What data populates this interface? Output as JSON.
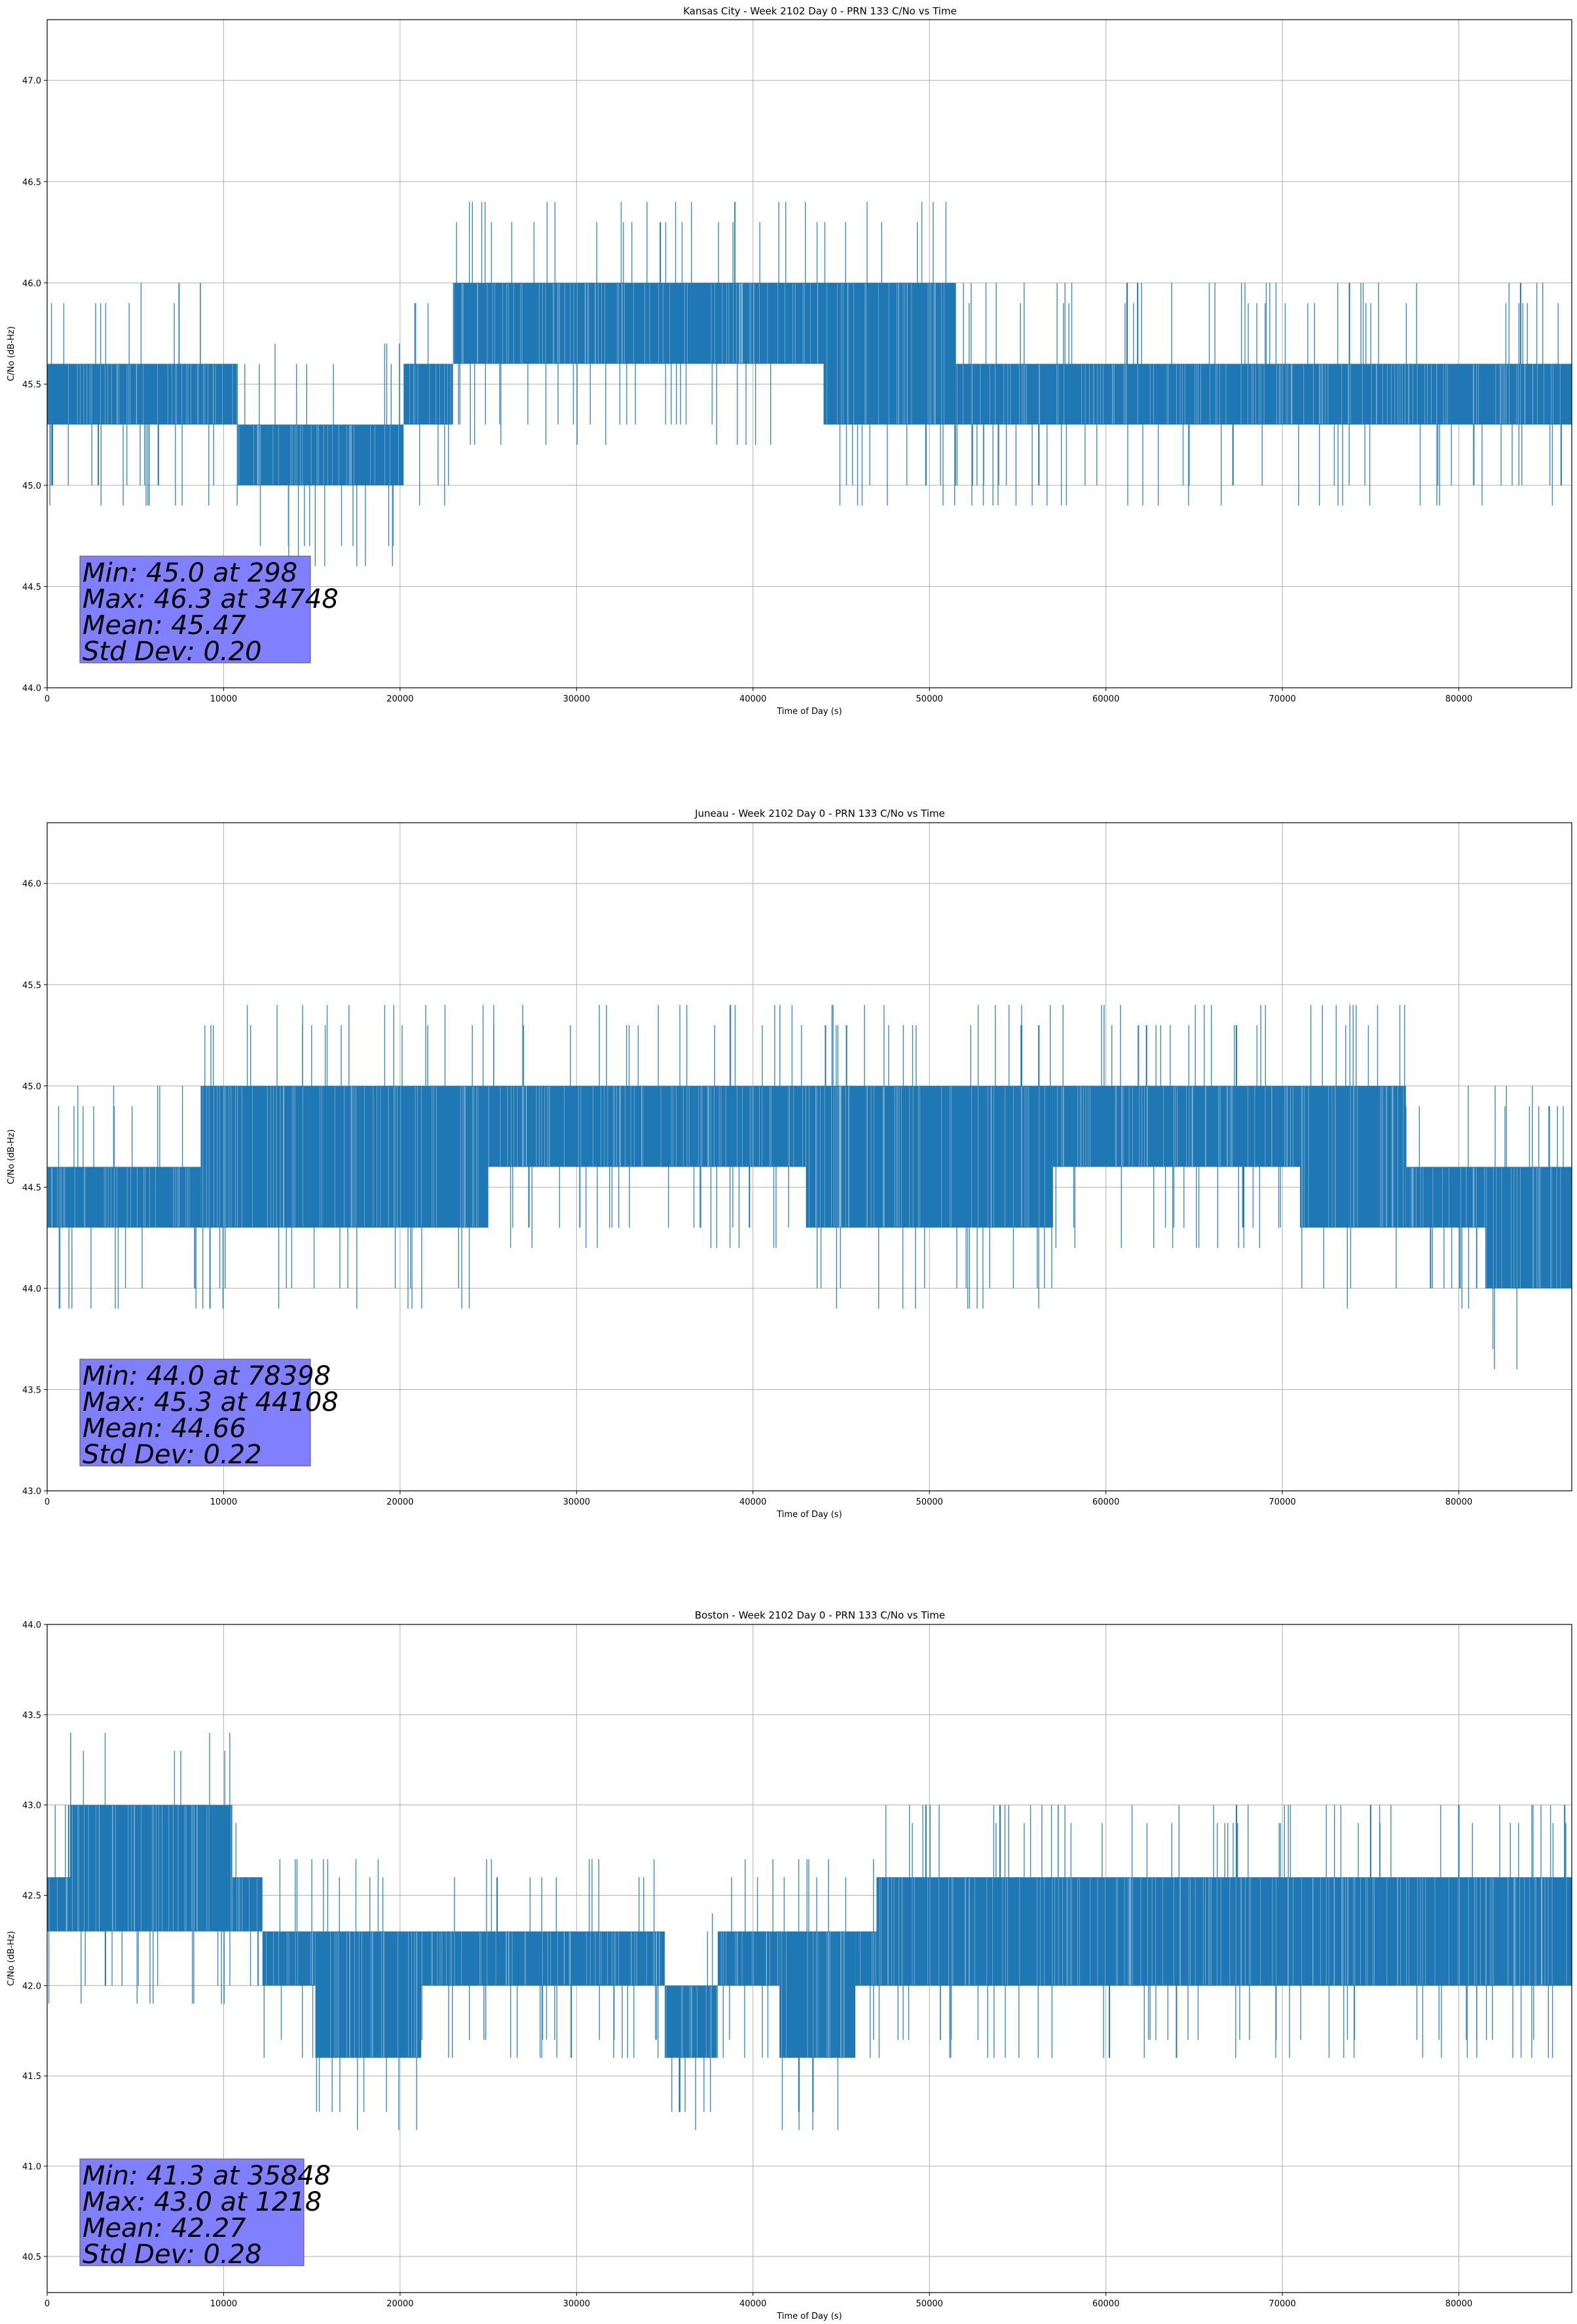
{
  "chart_data": [
    {
      "type": "line",
      "title": "Kansas City - Week 2102 Day 0 - PRN 133 C/No vs Time",
      "xlabel": "Time of Day (s)",
      "ylabel": "C/No (dB-Hz)",
      "xlim": [
        0,
        86400
      ],
      "ylim": [
        44.0,
        47.3
      ],
      "xticks": [
        0,
        10000,
        20000,
        30000,
        40000,
        50000,
        60000,
        70000,
        80000
      ],
      "yticks": [
        "44.0",
        "44.5",
        "45.0",
        "45.5",
        "46.0",
        "46.5",
        "47.0"
      ],
      "grid": true,
      "color": "#1f77b4",
      "segments": [
        {
          "from": 0,
          "to": 10800,
          "lo": 45.3,
          "hi": 45.6
        },
        {
          "from": 10800,
          "to": 20200,
          "lo": 45.0,
          "hi": 45.3
        },
        {
          "from": 20200,
          "to": 23000,
          "lo": 45.3,
          "hi": 45.6
        },
        {
          "from": 23000,
          "to": 35000,
          "lo": 45.6,
          "hi": 46.0
        },
        {
          "from": 35000,
          "to": 44000,
          "lo": 45.6,
          "hi": 46.0
        },
        {
          "from": 44000,
          "to": 51500,
          "lo": 45.3,
          "hi": 46.0
        },
        {
          "from": 51500,
          "to": 86400,
          "lo": 45.3,
          "hi": 45.6
        }
      ],
      "spikes": [
        {
          "x": 298,
          "y": 45.0
        },
        {
          "x": 2900,
          "y": 45.0
        },
        {
          "x": 6300,
          "y": 45.0
        },
        {
          "x": 34748,
          "y": 46.3
        },
        {
          "x": 61200,
          "y": 46.0
        },
        {
          "x": 61800,
          "y": 46.0
        },
        {
          "x": 73800,
          "y": 46.0
        },
        {
          "x": 83500,
          "y": 46.0
        },
        {
          "x": 49800,
          "y": 45.0
        },
        {
          "x": 56200,
          "y": 45.0
        },
        {
          "x": 67200,
          "y": 45.0
        },
        {
          "x": 85800,
          "y": 45.0
        }
      ],
      "stats": [
        "Min: 45.0 at 298",
        "Max: 46.3 at 34748",
        "Mean: 45.47",
        "Std Dev: 0.20"
      ]
    },
    {
      "type": "line",
      "title": "Juneau - Week 2102 Day 0 - PRN 133 C/No vs Time",
      "xlabel": "Time of Day (s)",
      "ylabel": "C/No (dB-Hz)",
      "xlim": [
        0,
        86400
      ],
      "ylim": [
        43.0,
        46.3
      ],
      "xticks": [
        0,
        10000,
        20000,
        30000,
        40000,
        50000,
        60000,
        70000,
        80000
      ],
      "yticks": [
        "43.0",
        "43.5",
        "44.0",
        "44.5",
        "45.0",
        "45.5",
        "46.0"
      ],
      "grid": true,
      "color": "#1f77b4",
      "segments": [
        {
          "from": 0,
          "to": 8700,
          "lo": 44.3,
          "hi": 44.6
        },
        {
          "from": 8700,
          "to": 25000,
          "lo": 44.3,
          "hi": 45.0
        },
        {
          "from": 25000,
          "to": 43000,
          "lo": 44.6,
          "hi": 45.0
        },
        {
          "from": 43000,
          "to": 57000,
          "lo": 44.3,
          "hi": 45.0
        },
        {
          "from": 57000,
          "to": 71000,
          "lo": 44.6,
          "hi": 45.0
        },
        {
          "from": 71000,
          "to": 77000,
          "lo": 44.3,
          "hi": 45.0
        },
        {
          "from": 77000,
          "to": 81500,
          "lo": 44.3,
          "hi": 44.6
        },
        {
          "from": 81500,
          "to": 86400,
          "lo": 44.0,
          "hi": 44.6
        }
      ],
      "spikes": [
        {
          "x": 44108,
          "y": 45.3
        },
        {
          "x": 45300,
          "y": 45.3
        },
        {
          "x": 55200,
          "y": 45.3
        },
        {
          "x": 56200,
          "y": 45.3
        },
        {
          "x": 62300,
          "y": 45.3
        },
        {
          "x": 67400,
          "y": 45.3
        },
        {
          "x": 78398,
          "y": 44.0
        },
        {
          "x": 27300,
          "y": 44.3
        },
        {
          "x": 39800,
          "y": 44.3
        },
        {
          "x": 67800,
          "y": 44.3
        }
      ],
      "stats": [
        "Min: 44.0 at 78398",
        "Max: 45.3 at 44108",
        "Mean: 44.66",
        "Std Dev: 0.22"
      ]
    },
    {
      "type": "line",
      "title": "Boston - Week 2102 Day 0 - PRN 133 C/No vs Time",
      "xlabel": "Time of Day (s)",
      "ylabel": "C/No (dB-Hz)",
      "xlim": [
        0,
        86400
      ],
      "ylim": [
        40.3,
        44.0
      ],
      "xticks": [
        0,
        10000,
        20000,
        30000,
        40000,
        50000,
        60000,
        70000,
        80000
      ],
      "yticks": [
        "40.5",
        "41.0",
        "41.5",
        "42.0",
        "42.5",
        "43.0",
        "43.5",
        "44.0"
      ],
      "grid": true,
      "color": "#1f77b4",
      "segments": [
        {
          "from": 0,
          "to": 1300,
          "lo": 42.3,
          "hi": 42.6
        },
        {
          "from": 1300,
          "to": 10500,
          "lo": 42.3,
          "hi": 43.0
        },
        {
          "from": 10500,
          "to": 12200,
          "lo": 42.3,
          "hi": 42.6
        },
        {
          "from": 12200,
          "to": 15200,
          "lo": 42.0,
          "hi": 42.3
        },
        {
          "from": 15200,
          "to": 21200,
          "lo": 41.6,
          "hi": 42.3
        },
        {
          "from": 21200,
          "to": 35000,
          "lo": 42.0,
          "hi": 42.3
        },
        {
          "from": 35000,
          "to": 38000,
          "lo": 41.6,
          "hi": 42.0
        },
        {
          "from": 38000,
          "to": 41500,
          "lo": 42.0,
          "hi": 42.3
        },
        {
          "from": 41500,
          "to": 45800,
          "lo": 41.6,
          "hi": 42.3
        },
        {
          "from": 45800,
          "to": 47000,
          "lo": 42.0,
          "hi": 42.3
        },
        {
          "from": 47000,
          "to": 86400,
          "lo": 42.0,
          "hi": 42.6
        }
      ],
      "spikes": [
        {
          "x": 1218,
          "y": 43.0
        },
        {
          "x": 35848,
          "y": 41.3
        },
        {
          "x": 42600,
          "y": 41.3
        },
        {
          "x": 43400,
          "y": 41.3
        },
        {
          "x": 25500,
          "y": 42.6
        },
        {
          "x": 49800,
          "y": 43.0
        },
        {
          "x": 54000,
          "y": 43.0
        },
        {
          "x": 67400,
          "y": 43.0
        },
        {
          "x": 75000,
          "y": 43.0
        },
        {
          "x": 80000,
          "y": 43.0
        },
        {
          "x": 86000,
          "y": 43.0
        },
        {
          "x": 60200,
          "y": 41.6
        },
        {
          "x": 64000,
          "y": 41.6
        },
        {
          "x": 3300,
          "y": 42.0
        },
        {
          "x": 29700,
          "y": 41.6
        }
      ],
      "stats": [
        "Min: 41.3 at 35848",
        "Max: 43.0 at 1218",
        "Mean: 42.27",
        "Std Dev: 0.28"
      ]
    }
  ]
}
